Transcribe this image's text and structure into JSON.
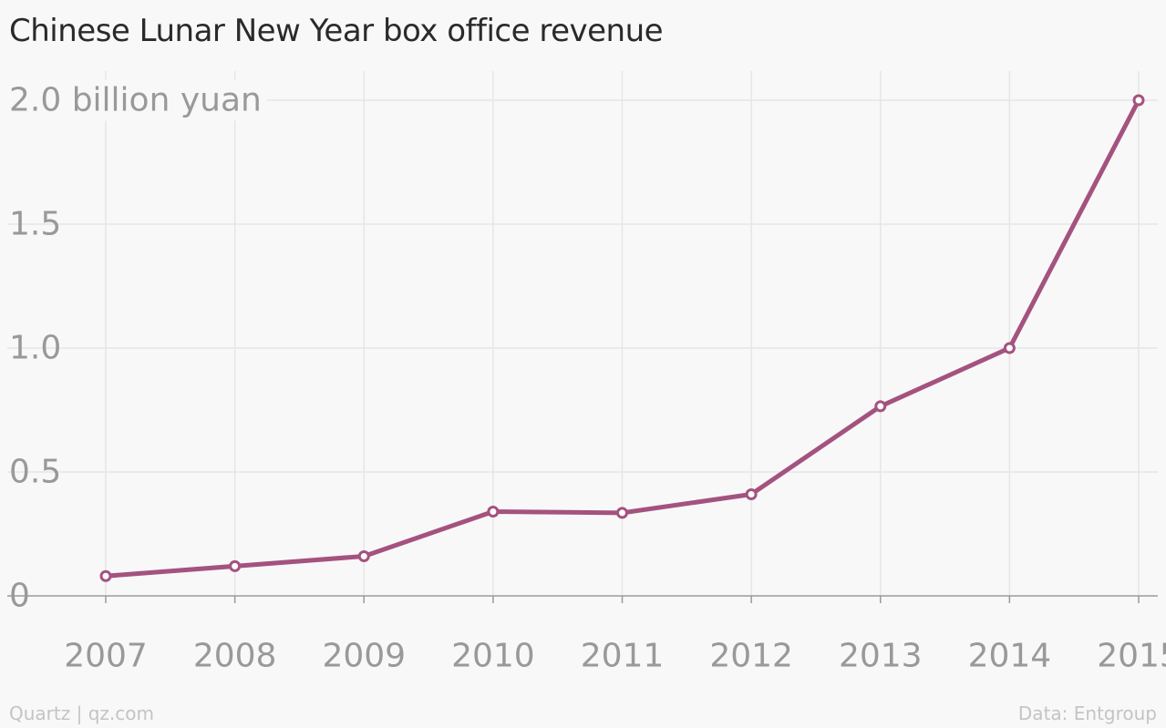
{
  "chart_data": {
    "type": "line",
    "title": "Chinese Lunar New Year box office revenue",
    "xlabel": "",
    "ylabel": "",
    "categories": [
      "2007",
      "2008",
      "2009",
      "2010",
      "2011",
      "2012",
      "2013",
      "2014",
      "2015"
    ],
    "series": [
      {
        "values": [
          0.08,
          0.12,
          0.16,
          0.34,
          0.335,
          0.41,
          0.765,
          1.0,
          2.0
        ]
      }
    ],
    "y_ticks": [
      {
        "value": 0,
        "label": "0"
      },
      {
        "value": 0.5,
        "label": "0.5"
      },
      {
        "value": 1.0,
        "label": "1.0"
      },
      {
        "value": 1.5,
        "label": "1.5"
      },
      {
        "value": 2.0,
        "label": "2.0 billion yuan"
      }
    ],
    "ylim": [
      0,
      2.0
    ],
    "grid": true,
    "line_color": "#a4527f",
    "marker_fill": "#ffffff"
  },
  "footer": {
    "source_credit": "Quartz | qz.com",
    "data_credit": "Data: Entgroup"
  }
}
